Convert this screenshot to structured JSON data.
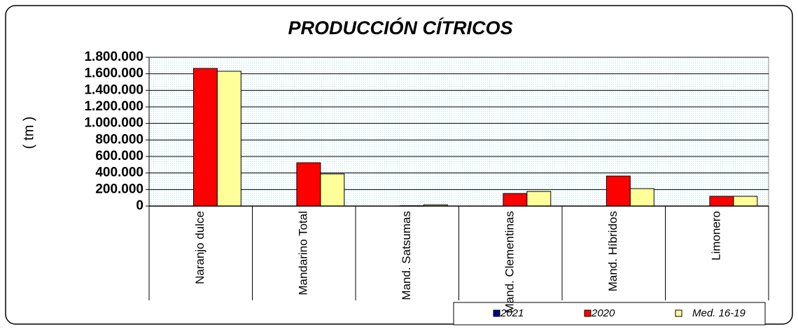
{
  "chart_data": {
    "type": "bar",
    "title": "PRODUCCIÓN CÍTRICOS",
    "y_label": "( tm )",
    "categories": [
      "Naranjo dulce",
      "Mandarino Total",
      "Mand. Satsumas",
      "Mand. Clementinas",
      "Mand. Híbridos",
      "Limonero"
    ],
    "series": [
      {
        "name": "2021",
        "color": "#000080",
        "values": [
          null,
          null,
          null,
          null,
          null,
          null
        ]
      },
      {
        "name": "2020",
        "color": "#ff0000",
        "values": [
          1665000,
          524000,
          5000,
          152000,
          363000,
          118000
        ]
      },
      {
        "name": "Med. 16-19",
        "color": "#ffff99",
        "values": [
          1631000,
          389000,
          15000,
          177000,
          211000,
          118000
        ]
      }
    ],
    "ylim": [
      0,
      1800000
    ],
    "yticks": [
      0,
      {
        "value": 200000,
        "label": "200.000"
      },
      {
        "value": 400000,
        "label": "400.000"
      },
      {
        "value": 600000,
        "label": "600.000"
      },
      {
        "value": 800000,
        "label": "800.000"
      },
      {
        "value": 1000000,
        "label": "1.000.000"
      },
      {
        "value": 1200000,
        "label": "1.200.000"
      },
      {
        "value": 1400000,
        "label": "1.400.000"
      },
      {
        "value": 1600000,
        "label": "1.600.000"
      },
      {
        "value": 1800000,
        "label": "1.800.000"
      }
    ],
    "grid": true,
    "legend": "bottom-right"
  }
}
